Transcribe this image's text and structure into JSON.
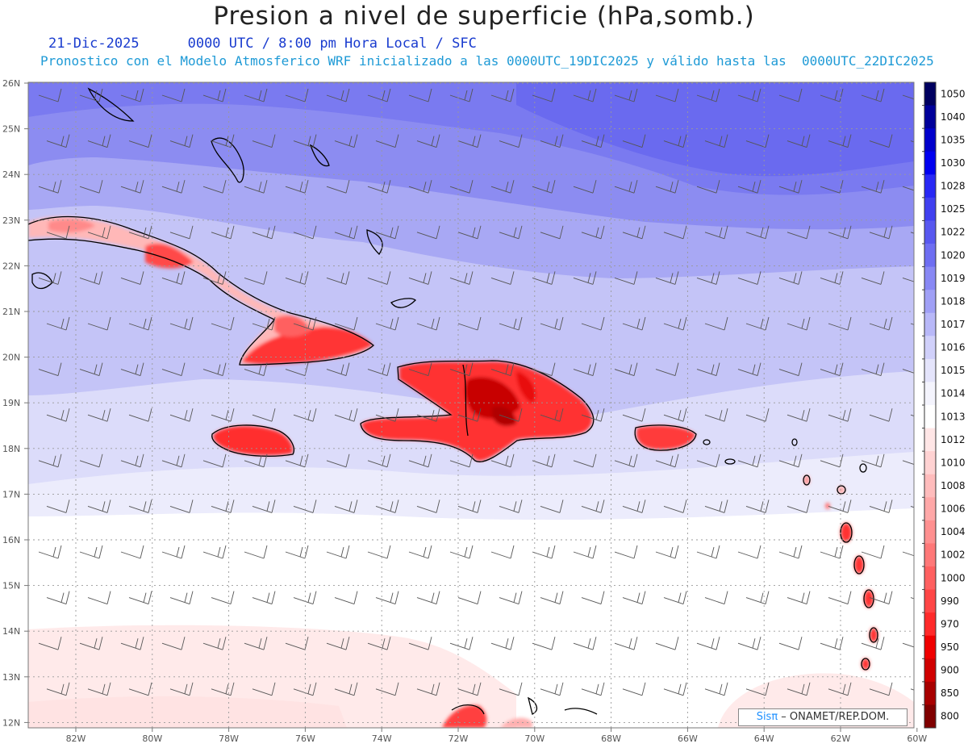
{
  "title": "Presion a nivel de superficie (hPa,somb.)",
  "date": "21-Dic-2025",
  "time_info": "0000 UTC / 8:00 pm Hora Local / SFC",
  "forecast_info": "Pronostico con el Modelo Atmosferico WRF inicializado a las 0000UTC_19DIC2025 y válido hasta las  0000UTC_22DIC2025",
  "credit": {
    "logo": "Sisπ",
    "text": " – ONAMET/REP.DOM."
  },
  "lat_labels": [
    "26N",
    "25N",
    "24N",
    "23N",
    "22N",
    "21N",
    "20N",
    "19N",
    "18N",
    "17N",
    "16N",
    "15N",
    "14N",
    "13N",
    "12N"
  ],
  "lon_labels": [
    "82W",
    "80W",
    "78W",
    "76W",
    "74W",
    "72W",
    "70W",
    "68W",
    "66W",
    "64W",
    "62W",
    "60W"
  ],
  "colorbar": {
    "levels": [
      "1050",
      "1040",
      "1035",
      "1030",
      "1028",
      "1025",
      "1022",
      "1020",
      "1019",
      "1018",
      "1017",
      "1016",
      "1015",
      "1014",
      "1013",
      "1012",
      "1010",
      "1008",
      "1006",
      "1004",
      "1002",
      "1000",
      "990",
      "970",
      "950",
      "900",
      "850",
      "800"
    ],
    "colors": [
      "#000060",
      "#00009a",
      "#0000cc",
      "#0000f0",
      "#2828f5",
      "#4040f0",
      "#5858f0",
      "#6e6ef2",
      "#8888f4",
      "#a0a0f6",
      "#b8b8f8",
      "#d0d0fa",
      "#e4e4fb",
      "#f4f4fd",
      "#ffffff",
      "#ffe6e6",
      "#ffd2d2",
      "#ffbcbc",
      "#ffa8a8",
      "#ff9090",
      "#ff7878",
      "#ff6060",
      "#ff4646",
      "#ff2a2a",
      "#f00000",
      "#d00000",
      "#a80000",
      "#800000"
    ]
  }
}
